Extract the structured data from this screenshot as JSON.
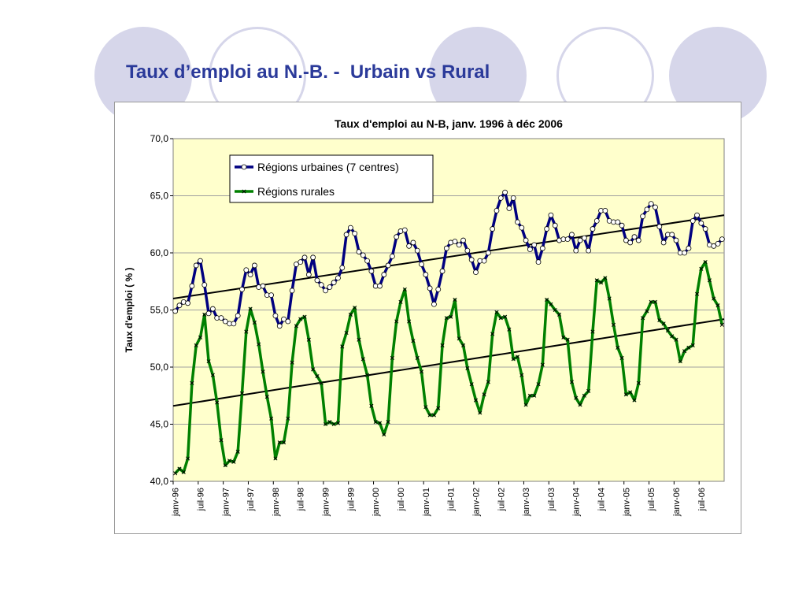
{
  "slide": {
    "title": "Taux d’emploi au N.-B. -  Urbain vs Rural"
  },
  "chart_data": {
    "type": "line",
    "title": "Taux d'emploi au N-B, janv. 1996 à déc 2006",
    "xlabel": "",
    "ylabel": "Taux d'emploi ( % )",
    "ylim": [
      40,
      70
    ],
    "yticks": [
      "40,0",
      "45,0",
      "50,0",
      "55,0",
      "60,0",
      "65,0",
      "70,0"
    ],
    "xticks": [
      "janv-96",
      "juil-96",
      "janv-97",
      "juil-97",
      "janv-98",
      "juil-98",
      "janv-99",
      "juil-99",
      "janv-00",
      "juil-00",
      "janv-01",
      "juil-01",
      "janv-02",
      "juil-02",
      "janv-03",
      "juil-03",
      "janv-04",
      "juil-04",
      "janv-05",
      "juil-05",
      "janv-06",
      "juil-06"
    ],
    "x_start": "janv-96",
    "x_end": "déc-06",
    "plot_background": "#ffffcc",
    "grid": "horizontal",
    "legend_position": "top-left",
    "series": [
      {
        "name": "Régions urbaines (7 centres)",
        "color": "#000080",
        "marker": "circle",
        "values": [
          54.9,
          55.4,
          55.7,
          55.6,
          57.1,
          58.9,
          59.3,
          57.2,
          54.7,
          55.1,
          54.3,
          54.3,
          54.0,
          53.8,
          53.8,
          54.5,
          56.8,
          58.5,
          58.1,
          58.9,
          57.0,
          57.1,
          56.3,
          56.3,
          54.5,
          53.6,
          54.2,
          54.0,
          56.7,
          59.0,
          59.2,
          59.6,
          58.1,
          59.6,
          57.6,
          57.2,
          56.7,
          57.0,
          57.4,
          57.8,
          58.7,
          61.6,
          62.2,
          61.7,
          60.1,
          59.8,
          59.3,
          58.4,
          57.1,
          57.1,
          58.1,
          58.9,
          59.7,
          61.4,
          61.9,
          62.0,
          60.6,
          60.9,
          60.2,
          59.0,
          58.1,
          56.9,
          55.5,
          56.8,
          58.4,
          60.4,
          60.9,
          61.0,
          60.7,
          61.1,
          60.2,
          59.4,
          58.3,
          59.3,
          59.3,
          60.0,
          62.1,
          63.7,
          64.8,
          65.3,
          63.9,
          64.8,
          62.7,
          62.2,
          61.1,
          60.3,
          60.7,
          59.2,
          60.4,
          62.1,
          63.3,
          62.4,
          61.1,
          61.2,
          61.2,
          61.6,
          60.2,
          61.1,
          61.3,
          60.2,
          62.1,
          62.8,
          63.7,
          63.7,
          62.8,
          62.7,
          62.7,
          62.4,
          61.1,
          60.9,
          61.4,
          61.1,
          63.2,
          63.8,
          64.3,
          64.0,
          62.3,
          60.9,
          61.6,
          61.6,
          61.1,
          60.0,
          60.0,
          60.4,
          62.8,
          63.3,
          62.6,
          62.1,
          60.7,
          60.6,
          60.8,
          61.2
        ]
      },
      {
        "name": "Régions rurales",
        "color": "#008000",
        "marker": "x",
        "values": [
          40.7,
          41.1,
          40.8,
          42.0,
          48.6,
          51.9,
          52.6,
          54.6,
          50.5,
          49.3,
          46.9,
          43.6,
          41.4,
          41.8,
          41.7,
          42.6,
          47.7,
          53.1,
          55.1,
          53.9,
          52.0,
          49.6,
          47.4,
          45.5,
          42.0,
          43.4,
          43.4,
          45.5,
          50.4,
          53.6,
          54.2,
          54.4,
          52.4,
          49.8,
          49.2,
          48.6,
          45.0,
          45.2,
          45.0,
          45.1,
          51.8,
          53.0,
          54.6,
          55.2,
          52.4,
          50.7,
          49.3,
          46.6,
          45.2,
          45.1,
          44.1,
          45.2,
          50.8,
          54.0,
          55.7,
          56.8,
          54.0,
          52.3,
          50.8,
          49.6,
          46.5,
          45.8,
          45.8,
          46.4,
          51.9,
          54.3,
          54.4,
          55.9,
          52.5,
          51.9,
          49.9,
          48.5,
          47.1,
          46.0,
          47.6,
          48.7,
          52.9,
          54.8,
          54.3,
          54.4,
          53.3,
          50.7,
          50.9,
          49.3,
          46.7,
          47.5,
          47.5,
          48.5,
          50.2,
          55.9,
          55.5,
          55.0,
          54.6,
          52.6,
          52.4,
          48.7,
          47.3,
          46.7,
          47.5,
          47.9,
          53.1,
          57.6,
          57.4,
          57.8,
          56.0,
          53.7,
          51.7,
          50.8,
          47.6,
          47.8,
          47.1,
          48.6,
          54.3,
          54.9,
          55.7,
          55.7,
          54.1,
          53.8,
          53.2,
          52.7,
          52.4,
          50.5,
          51.4,
          51.7,
          51.9,
          56.4,
          58.6,
          59.2,
          57.6,
          56.0,
          55.4,
          53.7
        ]
      }
    ],
    "trendlines": [
      {
        "series": "Régions urbaines (7 centres)",
        "start": 56.0,
        "end": 63.3,
        "color": "#000000"
      },
      {
        "series": "Régions rurales",
        "start": 46.6,
        "end": 54.2,
        "color": "#000000"
      }
    ]
  }
}
